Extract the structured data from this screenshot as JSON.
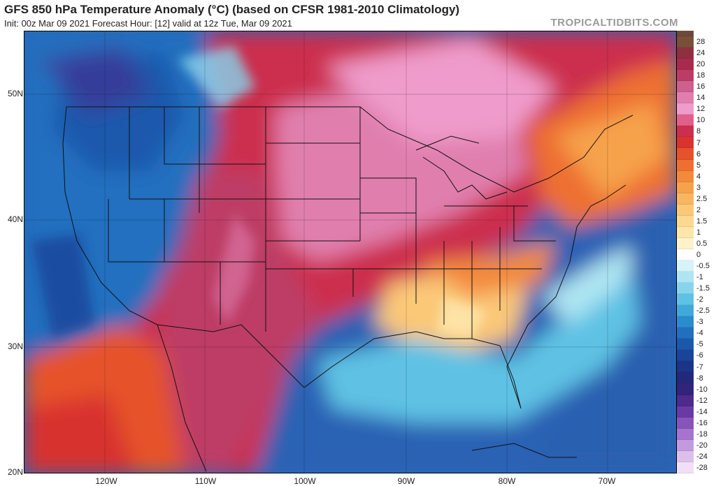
{
  "header": {
    "title": "GFS 850 hPa Temperature Anomaly (°C) (based on CFSR 1981-2010 Climatology)",
    "subtitle": "Init: 00z Mar 09 2021   Forecast Hour: [12]   valid at 12z Tue, Mar 09 2021",
    "brand": "TROPICALTIDBITS.COM"
  },
  "axes": {
    "lat_labels": [
      "50N",
      "40N",
      "30N",
      "20N"
    ],
    "lon_labels": [
      "120W",
      "110W",
      "100W",
      "90W",
      "80W",
      "70W"
    ]
  },
  "colorbar": {
    "labels": [
      "28",
      "24",
      "20",
      "18",
      "16",
      "14",
      "12",
      "10",
      "8",
      "7",
      "6",
      "5",
      "4",
      "3",
      "2.5",
      "2",
      "1.5",
      "1",
      "0.5",
      "0",
      "-0.5",
      "-1",
      "-1.5",
      "-2",
      "-2.5",
      "-3",
      "-4",
      "-5",
      "-6",
      "-7",
      "-8",
      "-10",
      "-12",
      "-14",
      "-16",
      "-18",
      "-20",
      "-24",
      "-28"
    ],
    "colors": [
      "#7a4f3a",
      "#8f2f40",
      "#a82a4c",
      "#bd3c66",
      "#cf5f8c",
      "#e07fae",
      "#ef9bcb",
      "#e0608a",
      "#cc2e4e",
      "#d8332f",
      "#e6522a",
      "#ee7030",
      "#f28a3c",
      "#f6a24c",
      "#f9b660",
      "#fbc878",
      "#fcd890",
      "#fde6aa",
      "#fef2cc",
      "#ffffff",
      "#d6f3f8",
      "#aee5f2",
      "#86d5ec",
      "#5ec2e4",
      "#3fa9da",
      "#2b8ccd",
      "#2070bf",
      "#1b58ac",
      "#1a449a",
      "#1c3488",
      "#23297a",
      "#33237a",
      "#4d2a8c",
      "#6a3aa4",
      "#8854ba",
      "#a674ce",
      "#c49ade",
      "#ddc0ea",
      "#f2dff5"
    ]
  }
}
